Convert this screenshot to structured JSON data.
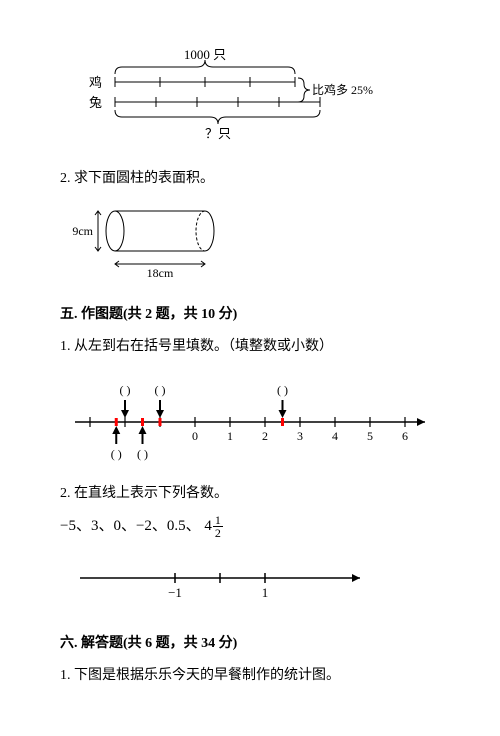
{
  "chicken_rabbit": {
    "top_label": "1000 只",
    "left_top": "鸡",
    "left_bot": "兔",
    "right_label": "比鸡多 25%",
    "bottom_label": "？只",
    "line_color": "#000000",
    "text_color": "#000000"
  },
  "q2_cylinder": {
    "text": "2. 求下面圆柱的表面积。",
    "height_label": "9cm",
    "length_label": "18cm",
    "line_color": "#000000"
  },
  "section5": {
    "title": "五. 作图题(共 2 题，共 10 分)",
    "q1": "1. 从左到右在括号里填数。（填整数或小数）",
    "q2": "2. 在直线上表示下列各数。",
    "numberline1": {
      "ticks": [
        -3,
        -2,
        -1,
        0,
        1,
        2,
        3,
        4,
        5,
        6
      ],
      "labels": {
        "-3": "",
        "-2": "",
        "-1": "",
        "0": "0",
        "1": "1",
        "2": "2",
        "3": "3",
        "4": "4",
        "5": "5",
        "6": "6"
      },
      "arrows_down": [
        -2,
        -1,
        2.5
      ],
      "arrows_up": [
        -2.25,
        -1.5
      ],
      "red_marks": [
        -2.25,
        -1.5,
        -1,
        2.5
      ],
      "paren": "(      )",
      "arrow_color": "#000000",
      "red_color": "#ff0000",
      "line_color": "#000000"
    },
    "values_text": "−5、3、0、−2、0.5、",
    "fraction_whole": "4",
    "fraction_num": "1",
    "fraction_den": "2",
    "numberline2": {
      "left_label": "−1",
      "right_label": "1",
      "line_color": "#000000"
    }
  },
  "section6": {
    "title": "六. 解答题(共 6 题，共 34 分)",
    "q1": "1. 下图是根据乐乐今天的早餐制作的统计图。"
  }
}
